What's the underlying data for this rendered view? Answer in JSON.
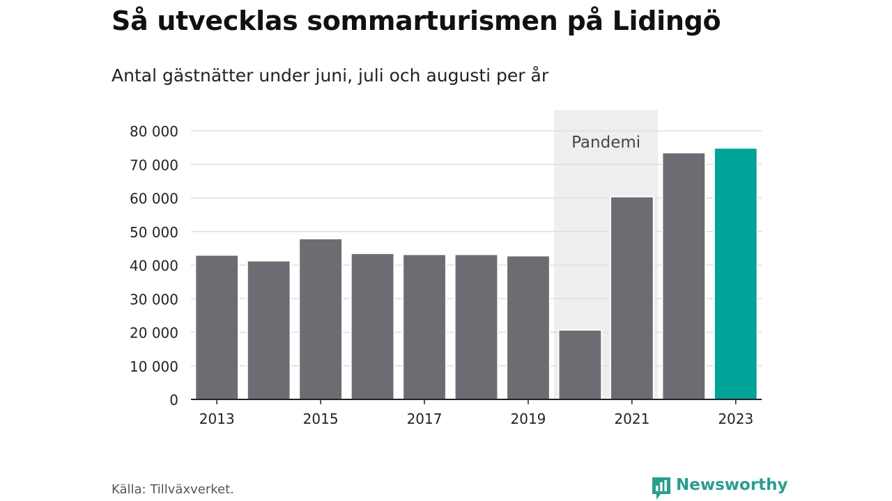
{
  "header": {
    "title": "Så utvecklas sommarturismen på Lidingö",
    "subtitle": "Antal gästnätter under juni, juli och augusti per år"
  },
  "footer": {
    "source": "Källa: Tillväxverket.",
    "brand": "Newsworthy",
    "brand_icon": "newsworthy-logo-icon"
  },
  "chart_data": {
    "type": "bar",
    "categories": [
      "2013",
      "2014",
      "2015",
      "2016",
      "2017",
      "2018",
      "2019",
      "2020",
      "2021",
      "2022",
      "2023"
    ],
    "values": [
      43000,
      41300,
      47900,
      43500,
      43200,
      43200,
      42800,
      20700,
      60400,
      73500,
      74900
    ],
    "x_tick_labels": [
      "2013",
      "2015",
      "2017",
      "2019",
      "2021",
      "2023"
    ],
    "y_ticks": [
      0,
      10000,
      20000,
      30000,
      40000,
      50000,
      60000,
      70000,
      80000
    ],
    "y_tick_labels": [
      "0",
      "10 000",
      "20 000",
      "30 000",
      "40 000",
      "50 000",
      "60 000",
      "70 000",
      "80 000"
    ],
    "ylim": [
      0,
      80000
    ],
    "grid": true,
    "highlight_category": "2023",
    "annotation": {
      "label": "Pandemi",
      "from_category": "2020",
      "to_category": "2021"
    },
    "colors": {
      "bar": "#6d6c72",
      "highlight": "#00a39a",
      "band": "#eeeeee",
      "grid": "#dddddd",
      "axis": "#222222"
    }
  }
}
